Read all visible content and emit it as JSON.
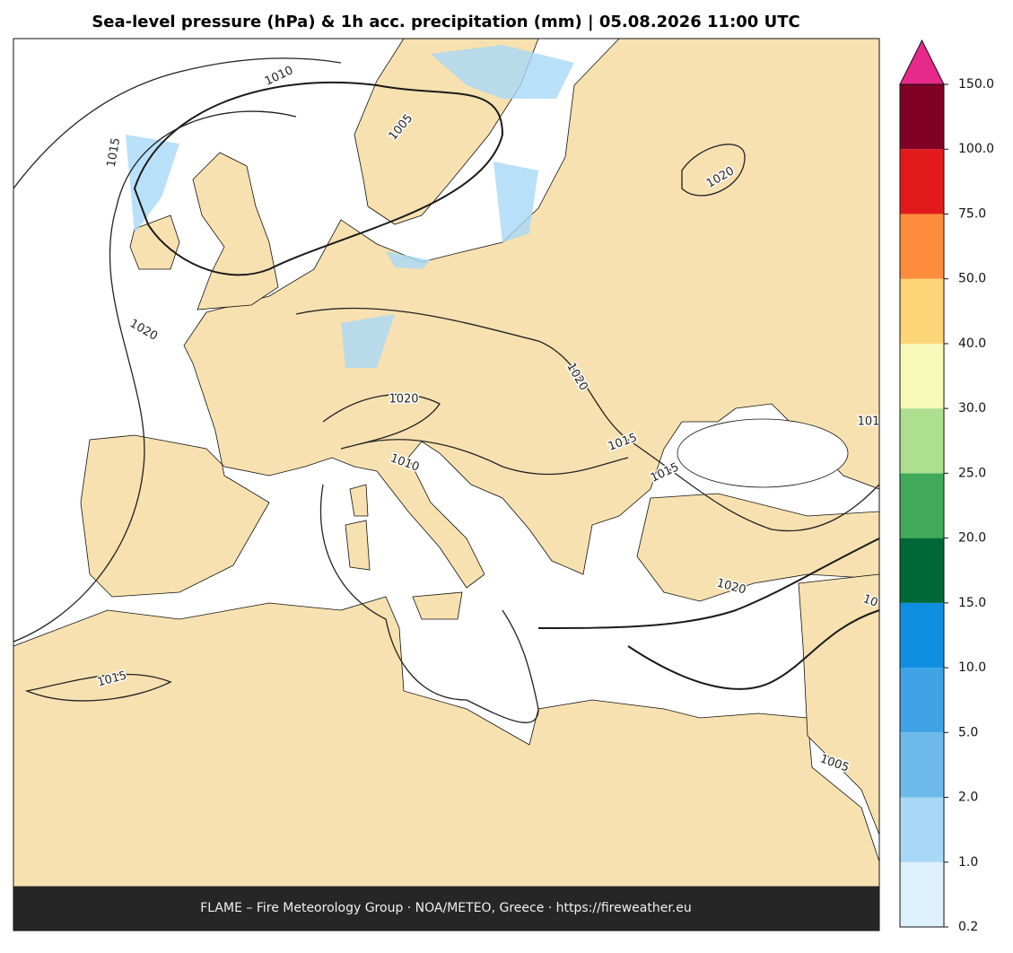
{
  "header": {
    "title": "Sea-level pressure (hPa) & 1h acc. precipitation (mm)  |  05.08.2026 11:00 UTC"
  },
  "footer": {
    "text": "FLAME – Fire Meteorology Group · NOA/METEO, Greece · https://fireweather.eu"
  },
  "map": {
    "contour_labels": [
      "1010",
      "1005",
      "1015",
      "1020",
      "1020",
      "1020",
      "1020",
      "1015",
      "1015",
      "1015",
      "1010",
      "1020",
      "1005",
      "101",
      "10"
    ]
  },
  "colorbar": {
    "ticks": [
      0.2,
      {
        "value": 1,
        "label": "1.0"
      },
      {
        "value": 2,
        "label": "2.0"
      },
      {
        "value": 5,
        "label": "5.0"
      },
      {
        "value": 10,
        "label": "10.0"
      },
      {
        "value": 15,
        "label": "15.0"
      },
      {
        "value": 20,
        "label": "20.0"
      },
      {
        "value": 25,
        "label": "25.0"
      },
      {
        "value": 30,
        "label": "30.0"
      },
      {
        "value": 40,
        "label": "40.0"
      },
      {
        "value": 50,
        "label": "50.0"
      },
      {
        "value": 75,
        "label": "75.0"
      },
      {
        "value": 100,
        "label": "100.0"
      },
      {
        "value": 150,
        "label": "150.0"
      }
    ],
    "colors": [
      "#ddf1fd",
      "#a7d8f7",
      "#6dbbeb",
      "#3fa3e6",
      "#0f8fe0",
      "#006837",
      "#41a95a",
      "#addf8e",
      "#f7f9b8",
      "#fed576",
      "#fd8d3c",
      "#e31a1c",
      "#800026"
    ],
    "extend_color": "#e7298a"
  }
}
